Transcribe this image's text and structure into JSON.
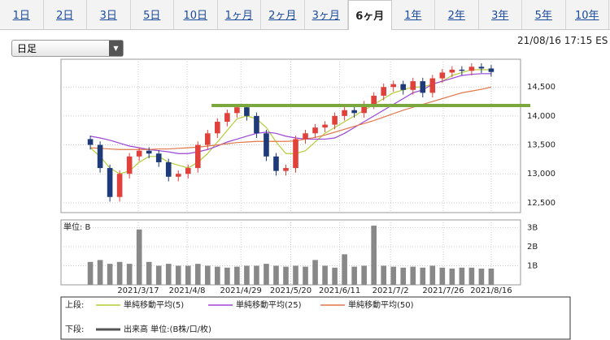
{
  "tabs": {
    "labels": [
      "1日",
      "2日",
      "3日",
      "5日",
      "10日",
      "1ヶ月",
      "2ヶ月",
      "3ヶ月",
      "6ヶ月",
      "1年",
      "2年",
      "3年",
      "5年",
      "10年"
    ],
    "active": 8
  },
  "dropdown": "日足",
  "timestamp": "21/08/16 17:15 ES",
  "chart_data": {
    "type": "candlestick",
    "ohlc": {
      "open": [
        13600,
        13500,
        13100,
        12600,
        13000,
        13300,
        13400,
        13350,
        13200,
        12950,
        13000,
        13100,
        13500,
        13700,
        13900,
        14050,
        14150,
        14000,
        13700,
        13300,
        13050,
        13100,
        13600,
        13700,
        13800,
        13850,
        14000,
        14100,
        14050,
        14200,
        14350,
        14500,
        14550,
        14450,
        14600,
        14400,
        14650,
        14750,
        14800,
        14780,
        14850,
        14820
      ],
      "high": [
        13660,
        13560,
        13160,
        13060,
        13360,
        13460,
        13460,
        13410,
        13260,
        13060,
        13160,
        13560,
        13760,
        13960,
        14110,
        14210,
        14210,
        14060,
        13760,
        13360,
        13160,
        13660,
        13760,
        13860,
        13910,
        14060,
        14160,
        14160,
        14260,
        14410,
        14560,
        14610,
        14610,
        14660,
        14660,
        14710,
        14810,
        14860,
        14860,
        14910,
        14910,
        14880
      ],
      "low": [
        13420,
        13020,
        12520,
        12520,
        12920,
        13220,
        13270,
        13120,
        12870,
        12870,
        12920,
        13020,
        13420,
        13620,
        13820,
        13970,
        13920,
        13620,
        13220,
        12970,
        12970,
        13020,
        13520,
        13620,
        13720,
        13770,
        13920,
        13970,
        13970,
        14120,
        14270,
        14420,
        14370,
        14370,
        14320,
        14320,
        14570,
        14670,
        14700,
        14700,
        14740,
        14680
      ],
      "close": [
        13500,
        13100,
        12600,
        13000,
        13300,
        13400,
        13350,
        13200,
        12950,
        13000,
        13100,
        13500,
        13700,
        13900,
        14050,
        14150,
        14000,
        13700,
        13300,
        13050,
        13100,
        13600,
        13700,
        13800,
        13850,
        14000,
        14100,
        14050,
        14200,
        14350,
        14500,
        14550,
        14450,
        14600,
        14400,
        14650,
        14750,
        14800,
        14780,
        14850,
        14820,
        14760
      ],
      "up_color": "#e0413a",
      "down_color": "#1f3a78"
    },
    "series": [
      {
        "name": "単純移動平均(5)",
        "color": "#b5cc3a",
        "values": [
          13450,
          13300,
          13100,
          13000,
          13050,
          13200,
          13300,
          13300,
          13200,
          13150,
          13100,
          13200,
          13350,
          13550,
          13750,
          13950,
          14000,
          13950,
          13800,
          13550,
          13350,
          13350,
          13400,
          13550,
          13700,
          13800,
          13900,
          14000,
          14100,
          14200,
          14300,
          14400,
          14450,
          14500,
          14500,
          14550,
          14600,
          14700,
          14750,
          14800,
          14800,
          14800
        ]
      },
      {
        "name": "単純移動平均(25)",
        "color": "#9b45d6",
        "values": [
          13650,
          13620,
          13580,
          13530,
          13480,
          13450,
          13420,
          13400,
          13380,
          13350,
          13350,
          13380,
          13420,
          13480,
          13550,
          13600,
          13650,
          13700,
          13720,
          13700,
          13650,
          13620,
          13600,
          13600,
          13600,
          13620,
          13700,
          13800,
          13900,
          14000,
          14100,
          14200,
          14300,
          14400,
          14450,
          14550,
          14600,
          14650,
          14700,
          14720,
          14730,
          14730
        ]
      },
      {
        "name": "単純移動平均(50)",
        "color": "#e0774a",
        "values": [
          13450,
          13440,
          13430,
          13420,
          13420,
          13420,
          13420,
          13430,
          13430,
          13440,
          13450,
          13460,
          13480,
          13500,
          13520,
          13540,
          13550,
          13560,
          13560,
          13560,
          13560,
          13570,
          13600,
          13630,
          13670,
          13720,
          13770,
          13820,
          13870,
          13920,
          13980,
          14040,
          14100,
          14150,
          14200,
          14250,
          14300,
          14350,
          14400,
          14430,
          14460,
          14500
        ]
      }
    ],
    "hline": {
      "value": 14180,
      "x_start": 12.4,
      "color": "#7aa83c"
    },
    "xlim": [
      -3,
      44
    ],
    "ylim": [
      12330,
      14980
    ],
    "yticks": [
      {
        "value": 12500,
        "label": "12,500"
      },
      {
        "value": 13000,
        "label": "13,000"
      },
      {
        "value": 13500,
        "label": "13,500"
      },
      {
        "value": 14000,
        "label": "14,000"
      },
      {
        "value": 14500,
        "label": "14,500"
      }
    ],
    "xticks": [
      {
        "value": 4.9,
        "label": "2021/3/17"
      },
      {
        "value": 9.9,
        "label": "2021/4/8"
      },
      {
        "value": 15.4,
        "label": "2021/4/29"
      },
      {
        "value": 20.5,
        "label": "2021/5/20"
      },
      {
        "value": 25.5,
        "label": "2021/6/11"
      },
      {
        "value": 30.7,
        "label": "2021/7/2"
      },
      {
        "value": 36.1,
        "label": "2021/7/26"
      },
      {
        "value": 41,
        "label": "2021/8/16"
      }
    ],
    "grid": true,
    "volume": {
      "name": "出来高 単位:(B株/口/枚)",
      "unit_label": "単位: B",
      "color": "#888888",
      "values": [
        1.2,
        1.3,
        1.1,
        1.2,
        1.1,
        2.9,
        1.2,
        1.0,
        1.1,
        1.0,
        1.0,
        1.1,
        1.0,
        0.95,
        0.9,
        0.95,
        1.0,
        1.0,
        1.1,
        1.0,
        0.95,
        1.0,
        0.95,
        1.3,
        1.0,
        0.9,
        1.6,
        0.95,
        1.0,
        3.1,
        1.0,
        0.95,
        0.9,
        0.95,
        0.9,
        1.0,
        0.9,
        0.85,
        0.9,
        0.9,
        0.85,
        0.85
      ],
      "ylim": [
        0,
        3.4
      ],
      "yticks": [
        {
          "value": 1,
          "label": "1B"
        },
        {
          "value": 2,
          "label": "2B"
        },
        {
          "value": 3,
          "label": "3B"
        }
      ]
    },
    "legend": {
      "upper": "上段:",
      "lower": "下段:"
    }
  }
}
